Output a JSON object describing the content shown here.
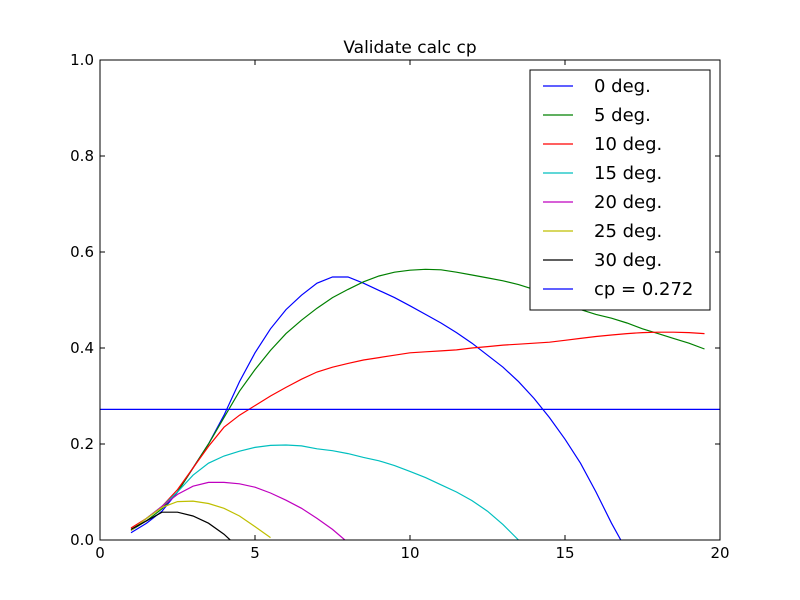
{
  "chart_data": {
    "type": "line",
    "title": "Validate calc cp",
    "xlabel": "",
    "ylabel": "",
    "xlim": [
      0,
      20
    ],
    "ylim": [
      0,
      1.0
    ],
    "xticks": [
      0,
      5,
      10,
      15,
      20
    ],
    "xtick_labels": [
      "0",
      "5",
      "10",
      "15",
      "20"
    ],
    "yticks": [
      0.0,
      0.2,
      0.4,
      0.6,
      0.8,
      1.0
    ],
    "ytick_labels": [
      "0.0",
      "0.2",
      "0.4",
      "0.6",
      "0.8",
      "1.0"
    ],
    "grid": false,
    "legend_position": "top-right",
    "series": [
      {
        "name": "0 deg.",
        "color": "#0000ff",
        "x": [
          1.0,
          1.5,
          2.0,
          2.5,
          3.0,
          3.5,
          4.0,
          4.5,
          5.0,
          5.5,
          6.0,
          6.5,
          7.0,
          7.5,
          8.0,
          8.5,
          9.0,
          9.5,
          10.0,
          10.5,
          11.0,
          11.5,
          12.0,
          12.5,
          13.0,
          13.5,
          14.0,
          14.5,
          15.0,
          15.5,
          16.0,
          16.5,
          16.8
        ],
        "y": [
          0.015,
          0.035,
          0.06,
          0.1,
          0.15,
          0.2,
          0.26,
          0.33,
          0.39,
          0.44,
          0.48,
          0.51,
          0.535,
          0.548,
          0.548,
          0.535,
          0.52,
          0.505,
          0.488,
          0.47,
          0.452,
          0.432,
          0.41,
          0.385,
          0.36,
          0.33,
          0.295,
          0.255,
          0.21,
          0.16,
          0.1,
          0.035,
          0.0
        ]
      },
      {
        "name": "5 deg.",
        "color": "#008000",
        "x": [
          1.0,
          1.5,
          2.0,
          2.5,
          3.0,
          3.5,
          4.0,
          4.5,
          5.0,
          5.5,
          6.0,
          6.5,
          7.0,
          7.5,
          8.0,
          8.5,
          9.0,
          9.5,
          10.0,
          10.5,
          11.0,
          11.5,
          12.0,
          12.5,
          13.0,
          13.5,
          14.0,
          14.5,
          15.0,
          15.5,
          16.0,
          16.5,
          17.0,
          17.5,
          18.0,
          18.5,
          19.0,
          19.5
        ],
        "y": [
          0.02,
          0.04,
          0.065,
          0.1,
          0.15,
          0.2,
          0.255,
          0.31,
          0.355,
          0.395,
          0.43,
          0.458,
          0.483,
          0.505,
          0.522,
          0.538,
          0.55,
          0.558,
          0.562,
          0.564,
          0.563,
          0.558,
          0.552,
          0.546,
          0.54,
          0.532,
          0.522,
          0.51,
          0.495,
          0.48,
          0.47,
          0.462,
          0.452,
          0.44,
          0.43,
          0.42,
          0.41,
          0.398
        ]
      },
      {
        "name": "10 deg.",
        "color": "#ff0000",
        "x": [
          1.0,
          1.5,
          2.0,
          2.5,
          3.0,
          3.5,
          4.0,
          4.5,
          5.0,
          5.5,
          6.0,
          6.5,
          7.0,
          7.5,
          8.0,
          8.5,
          9.0,
          9.5,
          10.0,
          10.5,
          11.0,
          11.5,
          12.0,
          12.5,
          13.0,
          13.5,
          14.0,
          14.5,
          15.0,
          15.5,
          16.0,
          16.5,
          17.0,
          17.5,
          18.0,
          18.5,
          19.0,
          19.5
        ],
        "y": [
          0.025,
          0.045,
          0.07,
          0.105,
          0.15,
          0.195,
          0.235,
          0.26,
          0.28,
          0.3,
          0.318,
          0.335,
          0.35,
          0.36,
          0.368,
          0.375,
          0.38,
          0.385,
          0.39,
          0.392,
          0.394,
          0.396,
          0.4,
          0.403,
          0.406,
          0.408,
          0.41,
          0.412,
          0.416,
          0.42,
          0.424,
          0.427,
          0.43,
          0.432,
          0.433,
          0.433,
          0.432,
          0.43
        ]
      },
      {
        "name": "15 deg.",
        "color": "#00bfbf",
        "x": [
          1.0,
          1.5,
          2.0,
          2.5,
          3.0,
          3.5,
          4.0,
          4.5,
          5.0,
          5.5,
          6.0,
          6.5,
          7.0,
          7.5,
          8.0,
          8.5,
          9.0,
          9.5,
          10.0,
          10.5,
          11.0,
          11.5,
          12.0,
          12.5,
          13.0,
          13.5
        ],
        "y": [
          0.02,
          0.045,
          0.07,
          0.1,
          0.135,
          0.16,
          0.175,
          0.185,
          0.193,
          0.197,
          0.198,
          0.196,
          0.19,
          0.186,
          0.18,
          0.172,
          0.165,
          0.155,
          0.143,
          0.13,
          0.115,
          0.1,
          0.082,
          0.06,
          0.032,
          0.0
        ]
      },
      {
        "name": "20 deg.",
        "color": "#bf00bf",
        "x": [
          1.0,
          1.5,
          2.0,
          2.5,
          3.0,
          3.5,
          4.0,
          4.5,
          5.0,
          5.5,
          6.0,
          6.5,
          7.0,
          7.5,
          7.9
        ],
        "y": [
          0.02,
          0.045,
          0.07,
          0.095,
          0.112,
          0.12,
          0.12,
          0.117,
          0.11,
          0.098,
          0.083,
          0.066,
          0.045,
          0.022,
          0.0
        ]
      },
      {
        "name": "25 deg.",
        "color": "#bfbf00",
        "x": [
          1.0,
          1.5,
          2.0,
          2.5,
          3.0,
          3.5,
          4.0,
          4.5,
          5.0,
          5.5
        ],
        "y": [
          0.02,
          0.045,
          0.068,
          0.08,
          0.081,
          0.076,
          0.066,
          0.05,
          0.028,
          0.005
        ]
      },
      {
        "name": "30 deg.",
        "color": "#000000",
        "x": [
          1.0,
          1.5,
          2.0,
          2.5,
          3.0,
          3.5,
          4.0,
          4.2
        ],
        "y": [
          0.022,
          0.04,
          0.058,
          0.058,
          0.05,
          0.035,
          0.012,
          0.0
        ]
      },
      {
        "name": "cp = 0.272",
        "color": "#0000ff",
        "x": [
          0,
          20
        ],
        "y": [
          0.272,
          0.272
        ]
      }
    ]
  }
}
